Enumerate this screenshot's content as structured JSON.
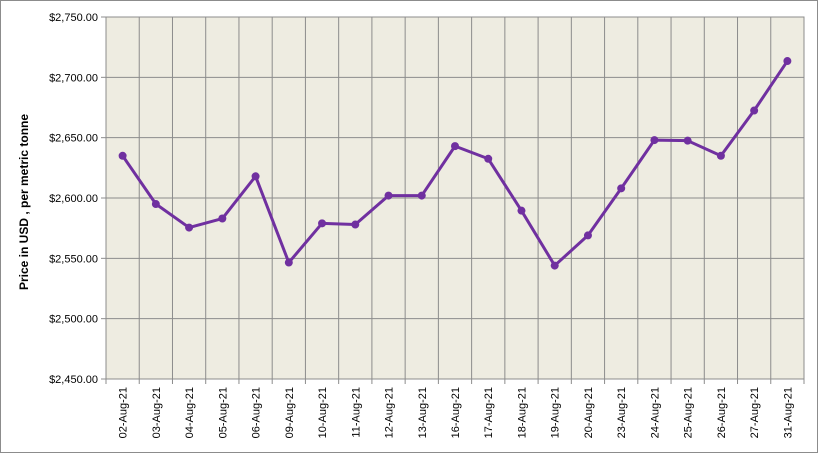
{
  "chart_data": {
    "type": "line",
    "title": "",
    "xlabel": "",
    "ylabel": "Price in USD , per metric tonne",
    "categories": [
      "02-Aug-21",
      "03-Aug-21",
      "04-Aug-21",
      "05-Aug-21",
      "06-Aug-21",
      "09-Aug-21",
      "10-Aug-21",
      "11-Aug-21",
      "12-Aug-21",
      "13-Aug-21",
      "16-Aug-21",
      "17-Aug-21",
      "18-Aug-21",
      "19-Aug-21",
      "20-Aug-21",
      "23-Aug-21",
      "24-Aug-21",
      "25-Aug-21",
      "26-Aug-21",
      "27-Aug-21",
      "31-Aug-21"
    ],
    "series": [
      {
        "values": [
          2635,
          2595,
          2575.5,
          2583,
          2618,
          2546.5,
          2579,
          2578,
          2602,
          2602,
          2643,
          2632.5,
          2589.5,
          2544,
          2569,
          2608,
          2648,
          2647.5,
          2635,
          2672.5,
          2713.5
        ]
      }
    ],
    "ylim": [
      2450,
      2750
    ],
    "yticks": [
      2450,
      2500,
      2550,
      2600,
      2650,
      2700,
      2750
    ],
    "ytick_labels": [
      "$2,450.00",
      "$2,500.00",
      "$2,550.00",
      "$2,600.00",
      "$2,650.00",
      "$2,700.00",
      "$2,750.00"
    ],
    "grid": true,
    "legend": "none",
    "colors": {
      "line": "#7030a0",
      "plot_background": "#eeece1",
      "gridline": "#8c8c8c"
    }
  }
}
